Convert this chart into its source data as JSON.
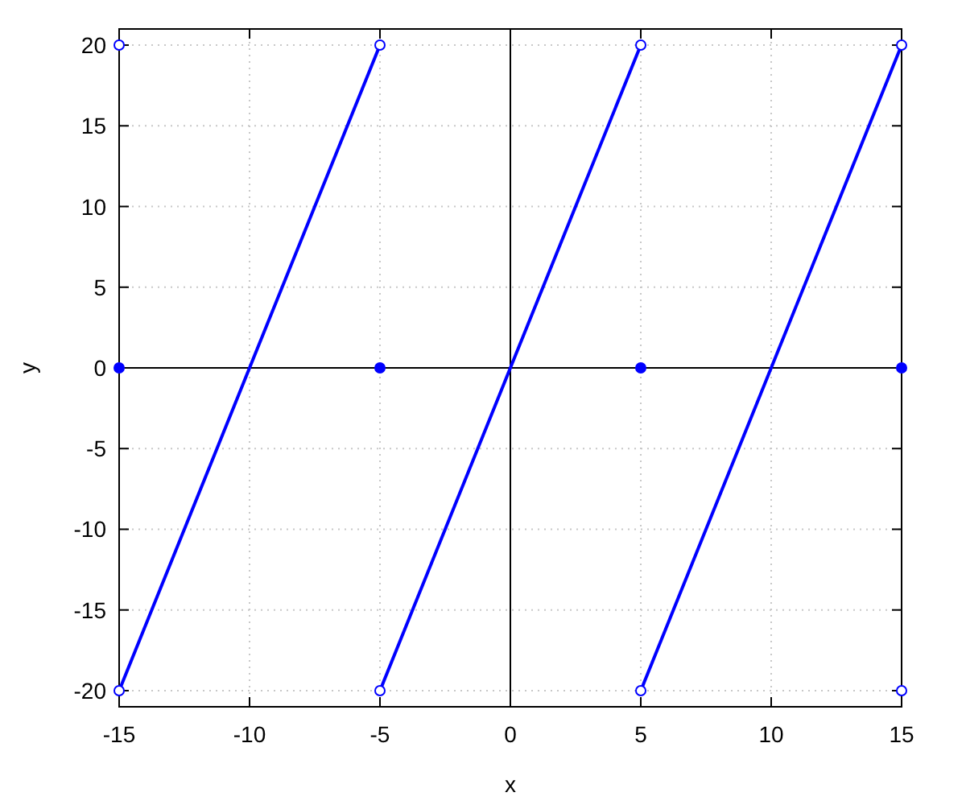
{
  "chart_data": {
    "type": "line",
    "xlabel": "x",
    "ylabel": "y",
    "xlim": [
      -15,
      15
    ],
    "ylim": [
      -21,
      21
    ],
    "xticks": [
      -15,
      -10,
      -5,
      0,
      5,
      10,
      15
    ],
    "yticks": [
      -20,
      -15,
      -10,
      -5,
      0,
      5,
      10,
      15,
      20
    ],
    "grid": true,
    "legend": false,
    "line_style": "solid",
    "series": [
      {
        "type": "line",
        "color": "#0000ff",
        "x": [
          -15,
          -5
        ],
        "values": [
          -20,
          20
        ],
        "marker": "none"
      },
      {
        "type": "line",
        "color": "#0000ff",
        "x": [
          -5,
          5
        ],
        "values": [
          -20,
          20
        ],
        "marker": "none"
      },
      {
        "type": "line",
        "color": "#0000ff",
        "x": [
          5,
          15
        ],
        "values": [
          -20,
          20
        ],
        "marker": "none"
      },
      {
        "type": "scatter",
        "color": "#0000ff",
        "x": [
          -15,
          -15,
          -5,
          -5,
          5,
          5,
          15,
          15
        ],
        "values": [
          20,
          -20,
          20,
          -20,
          20,
          -20,
          20,
          -20
        ],
        "marker": "circle"
      },
      {
        "type": "scatter",
        "color": "#0000ff",
        "x": [
          -15,
          -5,
          5,
          15
        ],
        "values": [
          0,
          0,
          0,
          0
        ],
        "marker": "circle"
      }
    ]
  }
}
